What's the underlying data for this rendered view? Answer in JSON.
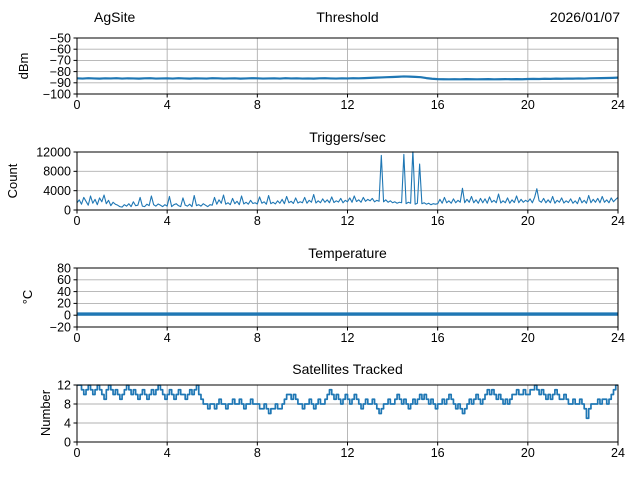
{
  "figure": {
    "background": "#ffffff",
    "line_color": "#1f77b4",
    "grid_color": "#b0b0b0",
    "spine_color": "#000000"
  },
  "header": {
    "site_label": "AgSite",
    "date_label": "2026/01/07"
  },
  "chart_data": [
    {
      "type": "line",
      "title": "Threshold",
      "title_left": "AgSite",
      "title_right": "2026/01/07",
      "ylabel": "dBm",
      "xlabel": "",
      "xlim": [
        0,
        24
      ],
      "ylim": [
        -100,
        -50
      ],
      "xticks": [
        0,
        4,
        8,
        12,
        16,
        20,
        24
      ],
      "yticks": [
        -100,
        -90,
        -80,
        -70,
        -60,
        -50
      ],
      "grid": true,
      "legend": "none",
      "series": [
        {
          "name": "rssi-threshold-dbm",
          "color": "#1f77b4",
          "width": 2.2,
          "step": false,
          "x0": 0,
          "dx": 0.25,
          "values": [
            -86.0,
            -86.2,
            -85.9,
            -86.1,
            -86.3,
            -86.0,
            -86.1,
            -85.9,
            -86.2,
            -86.0,
            -86.1,
            -86.3,
            -86.0,
            -85.9,
            -86.2,
            -86.1,
            -86.0,
            -86.2,
            -85.9,
            -86.1,
            -86.3,
            -86.0,
            -86.1,
            -86.2,
            -85.9,
            -86.0,
            -86.2,
            -86.1,
            -86.0,
            -86.3,
            -86.1,
            -85.9,
            -86.0,
            -86.2,
            -86.1,
            -86.0,
            -86.2,
            -85.9,
            -86.1,
            -86.0,
            -86.2,
            -86.1,
            -86.3,
            -86.0,
            -85.9,
            -86.1,
            -86.2,
            -86.0,
            -86.1,
            -85.9,
            -86.0,
            -85.8,
            -85.6,
            -85.4,
            -85.2,
            -85.0,
            -84.8,
            -84.6,
            -84.3,
            -84.5,
            -84.7,
            -85.0,
            -85.8,
            -86.4,
            -86.7,
            -86.8,
            -86.9,
            -86.8,
            -86.9,
            -86.7,
            -86.8,
            -86.9,
            -86.8,
            -86.7,
            -86.9,
            -86.8,
            -86.7,
            -86.8,
            -86.7,
            -86.8,
            -86.6,
            -86.5,
            -86.6,
            -86.4,
            -86.5,
            -86.3,
            -86.4,
            -86.2,
            -86.3,
            -86.1,
            -86.2,
            -86.0,
            -85.9,
            -85.8,
            -85.7,
            -85.6,
            -85.4
          ]
        }
      ]
    },
    {
      "type": "line",
      "title": "Triggers/sec",
      "ylabel": "Count",
      "xlabel": "",
      "xlim": [
        0,
        24
      ],
      "ylim": [
        0,
        12000
      ],
      "xticks": [
        0,
        4,
        8,
        12,
        16,
        20,
        24
      ],
      "yticks": [
        0,
        4000,
        8000,
        12000
      ],
      "grid": true,
      "legend": "none",
      "series": [
        {
          "name": "trigger-count",
          "color": "#1f77b4",
          "width": 1.1,
          "step": false,
          "x0": 0,
          "dx": 0.1,
          "values": [
            1500,
            2100,
            1200,
            2600,
            1800,
            1000,
            2900,
            1400,
            2200,
            1100,
            2500,
            1700,
            3100,
            1300,
            2000,
            900,
            1600,
            1200,
            1000,
            700,
            600,
            1100,
            800,
            1300,
            700,
            1700,
            900,
            1000,
            2600,
            800,
            700,
            1200,
            900,
            2900,
            1100,
            800,
            1250,
            1000,
            700,
            1100,
            800,
            2800,
            700,
            1100,
            1300,
            900,
            700,
            2500,
            1000,
            800,
            1200,
            700,
            3000,
            900,
            1100,
            800,
            1300,
            1000,
            700,
            1100,
            1000,
            2600,
            1200,
            2100,
            1400,
            3100,
            1200,
            1500,
            1100,
            2400,
            1300,
            1800,
            1100,
            2900,
            1250,
            1600,
            1200,
            2000,
            1350,
            1500,
            1250,
            2700,
            1400,
            1700,
            1200,
            3000,
            1300,
            1600,
            1250,
            1900,
            1400,
            2200,
            1300,
            2800,
            1500,
            1800,
            1350,
            2500,
            1450,
            1700,
            1500,
            2600,
            1400,
            2000,
            1600,
            3200,
            1450,
            1900,
            1500,
            2300,
            1600,
            2100,
            1500,
            2700,
            1550,
            1900,
            1650,
            2400,
            1500,
            2000,
            1700,
            2500,
            1600,
            2900,
            1750,
            2100,
            1600,
            2600,
            1800,
            2200,
            1900,
            2400,
            1700,
            2000,
            1800,
            11300,
            1700,
            2100,
            1600,
            1900,
            1500,
            1700,
            1400,
            1600,
            1500,
            11500,
            1300,
            1600,
            1400,
            12400,
            1200,
            1400,
            9500,
            1300,
            1500,
            1200,
            1400,
            1100,
            1300,
            1200,
            1300,
            2200,
            1400,
            2600,
            1500,
            1900,
            1400,
            2300,
            1500,
            2000,
            1600,
            4500,
            1500,
            2200,
            1600,
            2800,
            1500,
            2100,
            1400,
            2400,
            1500,
            2300,
            1400,
            2700,
            1600,
            2000,
            1500,
            3300,
            1450,
            1900,
            1500,
            2500,
            1400,
            2100,
            1550,
            2900,
            1500,
            2200,
            1600,
            2000,
            1700,
            2300,
            1500,
            2600,
            4400,
            1900,
            1600,
            2400,
            1500,
            2100,
            1500,
            2800,
            1400,
            2000,
            1600,
            2500,
            1450,
            1900,
            1550,
            2300,
            1400,
            1900,
            1300,
            2600,
            1500,
            2000,
            1400,
            3000,
            1500,
            2200,
            1600,
            2400,
            1500,
            2800,
            1600,
            2100,
            1500,
            2500,
            1700,
            2200,
            2600
          ]
        }
      ]
    },
    {
      "type": "line",
      "title": "Temperature",
      "ylabel": "°C",
      "xlabel": "",
      "xlim": [
        0,
        24
      ],
      "ylim": [
        -20,
        80
      ],
      "xticks": [
        0,
        4,
        8,
        12,
        16,
        20,
        24
      ],
      "yticks": [
        -20,
        0,
        20,
        40,
        60,
        80
      ],
      "grid": true,
      "legend": "none",
      "series": [
        {
          "name": "temperature-c",
          "color": "#1f77b4",
          "width": 3.4,
          "step": false,
          "x0": 0,
          "dx": 12,
          "values": [
            2.0,
            2.0,
            2.0
          ]
        }
      ]
    },
    {
      "type": "line",
      "title": "Satellites Tracked",
      "ylabel": "Number",
      "xlabel": "",
      "xlim": [
        0,
        24
      ],
      "ylim": [
        0,
        12
      ],
      "xticks": [
        0,
        4,
        8,
        12,
        16,
        20,
        24
      ],
      "yticks": [
        0,
        4,
        8,
        12
      ],
      "grid": true,
      "legend": "none",
      "series": [
        {
          "name": "satellites-tracked",
          "color": "#1f77b4",
          "width": 1.7,
          "step": true,
          "x0": 0,
          "dx": 0.1,
          "values": [
            12,
            12,
            11,
            10,
            11,
            12,
            11,
            10,
            11,
            12,
            11,
            10,
            9,
            11,
            12,
            11,
            10,
            11,
            10,
            9,
            10,
            11,
            12,
            11,
            10,
            11,
            10,
            9,
            10,
            11,
            10,
            9,
            10,
            11,
            10,
            11,
            12,
            11,
            10,
            9,
            10,
            11,
            10,
            9,
            10,
            11,
            10,
            10,
            9,
            10,
            11,
            10,
            11,
            12,
            10,
            9,
            8,
            8,
            7,
            8,
            8,
            7,
            8,
            9,
            8,
            8,
            7,
            8,
            8,
            9,
            8,
            8,
            9,
            8,
            7,
            8,
            8,
            9,
            8,
            8,
            8,
            7,
            7,
            8,
            7,
            6,
            7,
            7,
            8,
            7,
            7,
            8,
            9,
            10,
            10,
            9,
            10,
            9,
            8,
            8,
            7,
            8,
            8,
            9,
            8,
            7,
            8,
            9,
            8,
            8,
            9,
            10,
            11,
            10,
            9,
            10,
            9,
            8,
            9,
            10,
            9,
            8,
            9,
            10,
            9,
            8,
            7,
            8,
            9,
            8,
            8,
            9,
            8,
            7,
            6,
            7,
            8,
            8,
            9,
            8,
            8,
            9,
            10,
            9,
            8,
            9,
            8,
            7,
            8,
            9,
            8,
            9,
            10,
            9,
            10,
            9,
            8,
            9,
            8,
            7,
            8,
            8,
            9,
            8,
            9,
            10,
            9,
            8,
            7,
            8,
            7,
            6,
            7,
            8,
            9,
            8,
            9,
            10,
            9,
            8,
            9,
            10,
            11,
            10,
            11,
            10,
            9,
            10,
            9,
            8,
            9,
            8,
            9,
            10,
            10,
            11,
            10,
            10,
            11,
            10,
            10,
            11,
            11,
            12,
            11,
            10,
            11,
            10,
            9,
            10,
            9,
            10,
            11,
            10,
            9,
            9,
            10,
            9,
            8,
            8,
            9,
            8,
            8,
            9,
            8,
            7,
            5,
            7,
            8,
            8,
            8,
            9,
            8,
            9,
            9,
            8,
            9,
            10,
            11,
            12,
            12
          ]
        }
      ]
    }
  ]
}
